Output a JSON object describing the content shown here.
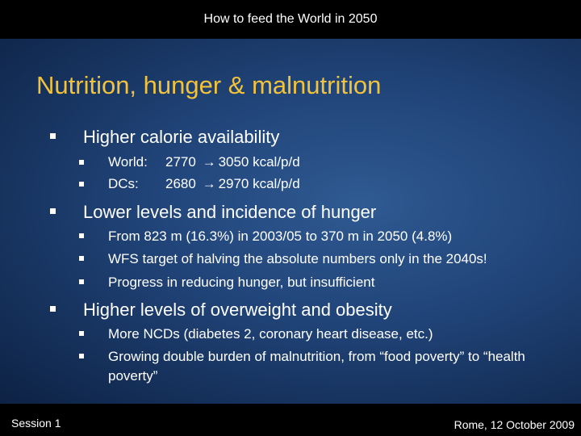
{
  "header": {
    "title": "How to feed the World in 2050"
  },
  "slide": {
    "title": "Nutrition, hunger & malnutrition",
    "sections": [
      {
        "heading": "Higher calorie availability",
        "items": [
          {
            "label": "World:",
            "from": "2770",
            "arrow": "→",
            "to": "3050 kcal/p/d"
          },
          {
            "label": "DCs:",
            "from": "2680",
            "arrow": "→",
            "to": "2970 kcal/p/d"
          }
        ]
      },
      {
        "heading": "Lower levels and incidence of hunger",
        "items": [
          "From 823 m (16.3%) in 2003/05 to 370 m in 2050 (4.8%)",
          "WFS target of halving the absolute numbers only in the 2040s!",
          "Progress in reducing hunger, but insufficient"
        ]
      },
      {
        "heading": "Higher levels of overweight and obesity",
        "items": [
          "More NCDs (diabetes 2, coronary heart disease, etc.)",
          "Growing double burden of malnutrition, from “food poverty” to “health poverty”"
        ]
      }
    ]
  },
  "footer": {
    "left": "Session 1",
    "right": "Rome, 12 October 2009"
  },
  "colors": {
    "title": "#f2c33a",
    "text": "#ffffff",
    "bar": "#000000",
    "background": "#21457a"
  }
}
